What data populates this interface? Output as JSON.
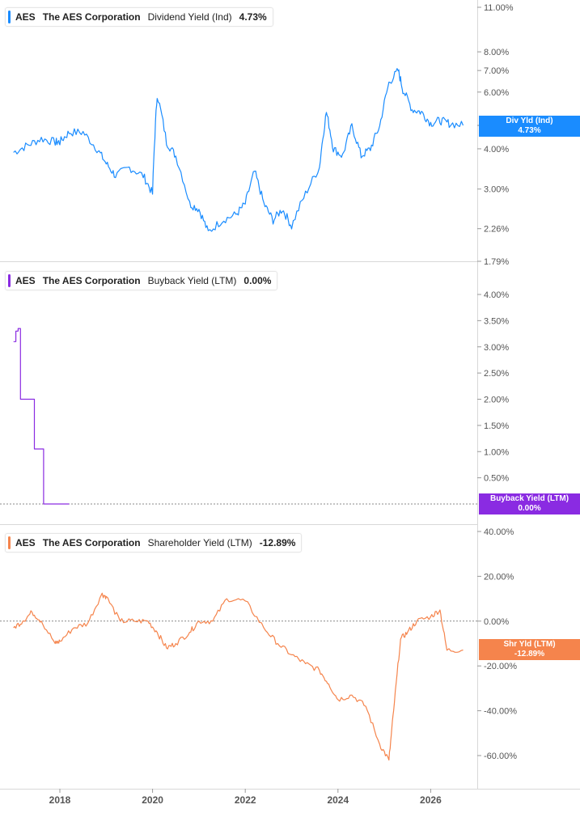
{
  "colors": {
    "dividend": "#1a8cff",
    "buyback": "#8a2be2",
    "shareholder": "#f5844c",
    "grid": "#d8d8d8",
    "axis_text": "#555555"
  },
  "legends": [
    {
      "ticker": "AES",
      "company": "The AES Corporation",
      "metric": "Dividend Yield (Ind)",
      "value": "4.73%"
    },
    {
      "ticker": "AES",
      "company": "The AES Corporation",
      "metric": "Buyback Yield (LTM)",
      "value": "0.00%"
    },
    {
      "ticker": "AES",
      "company": "The AES Corporation",
      "metric": "Shareholder Yield (LTM)",
      "value": "-12.89%"
    }
  ],
  "tags": [
    {
      "label": "Div Yld (Ind)",
      "value": "4.73%"
    },
    {
      "label": "Buyback Yield (LTM)",
      "value": "0.00%"
    },
    {
      "label": "Shr Yld (LTM)",
      "value": "-12.89%"
    }
  ],
  "chart_data": [
    {
      "type": "line",
      "series": [
        {
          "name": "Dividend Yield (Ind)",
          "x": [
            2017.0,
            2017.3,
            2017.6,
            2017.9,
            2018.0,
            2018.2,
            2018.5,
            2018.8,
            2019.0,
            2019.2,
            2019.5,
            2019.8,
            2020.0,
            2020.1,
            2020.3,
            2020.5,
            2020.8,
            2021.0,
            2021.2,
            2021.5,
            2021.8,
            2022.0,
            2022.2,
            2022.4,
            2022.6,
            2022.8,
            2023.0,
            2023.3,
            2023.6,
            2023.75,
            2023.9,
            2024.1,
            2024.3,
            2024.5,
            2024.7,
            2024.9,
            2025.1,
            2025.3,
            2025.4,
            2025.6,
            2025.8,
            2026.0,
            2026.2,
            2026.4,
            2026.7
          ],
          "values": [
            3.9,
            4.1,
            4.3,
            4.2,
            4.2,
            4.5,
            4.5,
            4.0,
            3.6,
            3.3,
            3.5,
            3.3,
            2.9,
            5.9,
            4.2,
            3.8,
            2.7,
            2.6,
            2.2,
            2.4,
            2.5,
            2.7,
            3.4,
            2.7,
            2.4,
            2.6,
            2.3,
            2.9,
            3.5,
            5.2,
            4.0,
            3.8,
            4.7,
            3.8,
            4.0,
            4.7,
            6.4,
            7.0,
            6.1,
            5.3,
            5.2,
            4.8,
            4.9,
            4.8,
            4.73
          ]
        }
      ],
      "x_ticks": [
        "2018",
        "2020",
        "2022",
        "2024",
        "2026"
      ],
      "y_ticks": [
        "11.00%",
        "8.00%",
        "7.00%",
        "6.00%",
        "4.00%",
        "3.00%",
        "2.26%",
        "1.79%"
      ],
      "y_scale": "log"
    },
    {
      "type": "line",
      "series": [
        {
          "name": "Buyback Yield (LTM)",
          "x": [
            2017.0,
            2017.05,
            2017.1,
            2017.15,
            2017.25,
            2017.4,
            2017.45,
            2017.6,
            2017.65,
            2017.9,
            2018.2
          ],
          "values": [
            3.1,
            3.3,
            3.35,
            2.0,
            2.0,
            2.0,
            1.05,
            1.05,
            0.0,
            0.0,
            0.0
          ]
        }
      ],
      "y_ticks": [
        "4.00%",
        "3.50%",
        "3.00%",
        "2.50%",
        "2.00%",
        "1.50%",
        "1.00%",
        "0.50%"
      ],
      "ylim": [
        0,
        4.3
      ]
    },
    {
      "type": "line",
      "series": [
        {
          "name": "Shareholder Yield (LTM)",
          "x": [
            2017.0,
            2017.2,
            2017.4,
            2017.6,
            2017.9,
            2018.0,
            2018.3,
            2018.6,
            2018.9,
            2019.0,
            2019.3,
            2019.6,
            2019.9,
            2020.1,
            2020.3,
            2020.5,
            2020.8,
            2021.0,
            2021.3,
            2021.6,
            2022.0,
            2022.4,
            2022.7,
            2023.0,
            2023.3,
            2023.6,
            2023.8,
            2024.0,
            2024.3,
            2024.6,
            2024.9,
            2025.1,
            2025.2,
            2025.35,
            2025.5,
            2025.7,
            2026.0,
            2026.2,
            2026.35,
            2026.7
          ],
          "values": [
            -3,
            0,
            4,
            0,
            -10,
            -9,
            -3,
            -1,
            12,
            11,
            0,
            0,
            0,
            -5,
            -12,
            -10,
            -5,
            0,
            0,
            10,
            9,
            -3,
            -10,
            -15,
            -19,
            -22,
            -28,
            -35,
            -33,
            -38,
            -55,
            -62,
            -40,
            -8,
            -5,
            0,
            2,
            5,
            -13,
            -12.89
          ]
        }
      ],
      "y_ticks": [
        "40.00%",
        "20.00%",
        "0.00%",
        "-20.00%",
        "-40.00%",
        "-60.00%"
      ],
      "ylim": [
        -72,
        42
      ]
    }
  ]
}
